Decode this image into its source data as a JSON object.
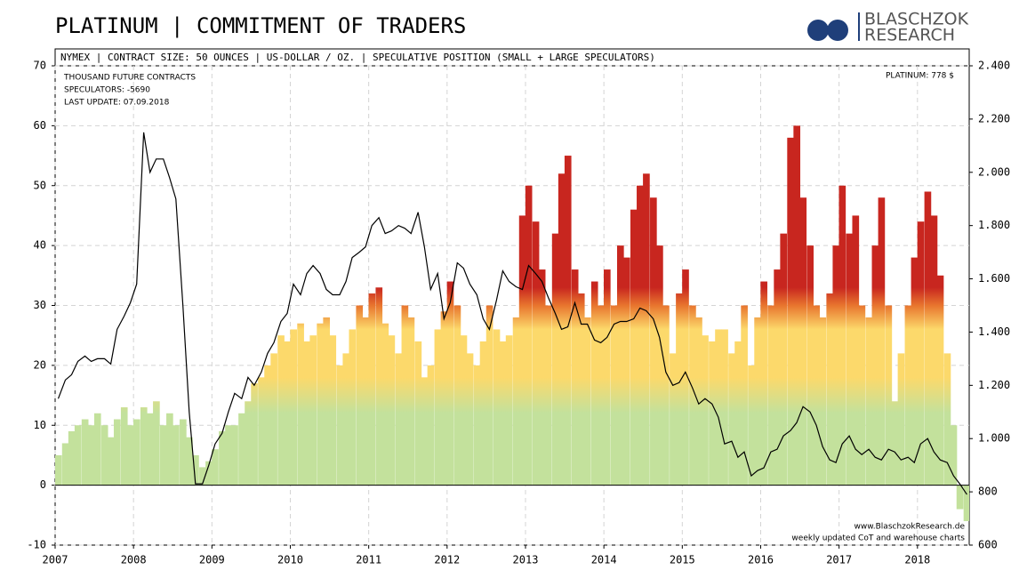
{
  "chart_data": {
    "type": "combo",
    "title": "PLATINUM | COMMITMENT OF TRADERS",
    "logo": [
      "BLASCHZOK",
      "RESEARCH"
    ],
    "subtitle": "NYMEX | CONTRACT SIZE: 50 OUNCES | US-DOLLAR / OZ. | SPECULATIVE POSITION (SMALL + LARGE SPECULATORS)",
    "annotations": [
      "THOUSAND FUTURE CONTRACTS",
      "SPECULATORS: -5690",
      "LAST UPDATE: 07.09.2018",
      "PLATINUM: 778 $",
      "www.BlaschzokResearch.de",
      "weekly updated CoT and warehouse charts"
    ],
    "xlim": [
      2007,
      2018.66
    ],
    "xticks": [
      2007,
      2008,
      2009,
      2010,
      2011,
      2012,
      2013,
      2014,
      2015,
      2016,
      2017,
      2018
    ],
    "ylim": [
      -10,
      70
    ],
    "yticks": [
      -10,
      0,
      10,
      20,
      30,
      40,
      50,
      60,
      70
    ],
    "y2lim": [
      600,
      2400
    ],
    "y2ticks": [
      600,
      800,
      {
        "value": 1000,
        "label": "1.000"
      },
      {
        "value": 1200,
        "label": "1.200"
      },
      {
        "value": 1400,
        "label": "1.400"
      },
      {
        "value": 1600,
        "label": "1.600"
      },
      {
        "value": 1800,
        "label": "1.800"
      },
      {
        "value": 2000,
        "label": "2.000"
      },
      {
        "value": 2200,
        "label": "2.200"
      },
      {
        "value": 2400,
        "label": "2.400"
      }
    ],
    "grid": true,
    "x": [
      2007.04,
      2007.13,
      2007.21,
      2007.29,
      2007.38,
      2007.46,
      2007.54,
      2007.63,
      2007.71,
      2007.79,
      2007.88,
      2007.96,
      2008.04,
      2008.13,
      2008.21,
      2008.29,
      2008.38,
      2008.46,
      2008.54,
      2008.63,
      2008.71,
      2008.79,
      2008.88,
      2008.96,
      2009.04,
      2009.13,
      2009.21,
      2009.29,
      2009.38,
      2009.46,
      2009.54,
      2009.63,
      2009.71,
      2009.79,
      2009.88,
      2009.96,
      2010.04,
      2010.13,
      2010.21,
      2010.29,
      2010.38,
      2010.46,
      2010.54,
      2010.63,
      2010.71,
      2010.79,
      2010.88,
      2010.96,
      2011.04,
      2011.13,
      2011.21,
      2011.29,
      2011.38,
      2011.46,
      2011.54,
      2011.63,
      2011.71,
      2011.79,
      2011.88,
      2011.96,
      2012.04,
      2012.13,
      2012.21,
      2012.29,
      2012.38,
      2012.46,
      2012.54,
      2012.63,
      2012.71,
      2012.79,
      2012.88,
      2012.96,
      2013.04,
      2013.13,
      2013.21,
      2013.29,
      2013.38,
      2013.46,
      2013.54,
      2013.63,
      2013.71,
      2013.79,
      2013.88,
      2013.96,
      2014.04,
      2014.13,
      2014.21,
      2014.29,
      2014.38,
      2014.46,
      2014.54,
      2014.63,
      2014.71,
      2014.79,
      2014.88,
      2014.96,
      2015.04,
      2015.13,
      2015.21,
      2015.29,
      2015.38,
      2015.46,
      2015.54,
      2015.63,
      2015.71,
      2015.79,
      2015.88,
      2015.96,
      2016.04,
      2016.13,
      2016.21,
      2016.29,
      2016.38,
      2016.46,
      2016.54,
      2016.63,
      2016.71,
      2016.79,
      2016.88,
      2016.96,
      2017.04,
      2017.13,
      2017.21,
      2017.29,
      2017.38,
      2017.46,
      2017.54,
      2017.63,
      2017.71,
      2017.79,
      2017.88,
      2017.96,
      2018.04,
      2018.13,
      2018.21,
      2018.29,
      2018.38,
      2018.46,
      2018.54,
      2018.63
    ],
    "series": [
      {
        "type": "bar",
        "color_scale": [
          {
            "value": 12,
            "color": "#c3e19c"
          },
          {
            "value": 18,
            "color": "#fcd96b"
          },
          {
            "value": 26,
            "color": "#fcd96b"
          },
          {
            "value": 30,
            "color": "#e8752e"
          },
          {
            "value": 33,
            "color": "#c8261f"
          }
        ],
        "values": [
          5,
          7,
          9,
          10,
          11,
          10,
          12,
          10,
          8,
          11,
          13,
          10,
          11,
          13,
          12,
          14,
          10,
          12,
          10,
          11,
          8,
          5,
          3,
          4,
          6,
          9,
          10,
          10,
          12,
          14,
          17,
          18,
          20,
          22,
          25,
          24,
          26,
          27,
          24,
          25,
          27,
          28,
          25,
          20,
          22,
          26,
          30,
          28,
          32,
          33,
          27,
          25,
          22,
          30,
          28,
          24,
          18,
          20,
          26,
          29,
          34,
          30,
          25,
          22,
          20,
          24,
          30,
          26,
          24,
          25,
          28,
          45,
          50,
          44,
          36,
          30,
          42,
          52,
          55,
          36,
          32,
          28,
          34,
          30,
          36,
          30,
          40,
          38,
          46,
          50,
          52,
          48,
          40,
          30,
          22,
          32,
          36,
          30,
          28,
          25,
          24,
          26,
          26,
          22,
          24,
          30,
          20,
          28,
          34,
          30,
          36,
          42,
          58,
          60,
          48,
          40,
          30,
          28,
          32,
          40,
          50,
          42,
          45,
          30,
          28,
          40,
          48,
          30,
          14,
          22,
          30,
          38,
          44,
          49,
          45,
          35,
          22,
          10,
          -4,
          -6
        ]
      },
      {
        "type": "line",
        "axis": "y2",
        "color": "#000000",
        "values": [
          1150,
          1220,
          1240,
          1290,
          1310,
          1290,
          1300,
          1300,
          1280,
          1410,
          1460,
          1510,
          1580,
          2150,
          2000,
          2050,
          2050,
          1980,
          1900,
          1500,
          1100,
          830,
          830,
          900,
          980,
          1020,
          1100,
          1170,
          1150,
          1230,
          1200,
          1250,
          1320,
          1360,
          1440,
          1470,
          1580,
          1540,
          1620,
          1650,
          1620,
          1560,
          1540,
          1540,
          1590,
          1680,
          1700,
          1720,
          1800,
          1830,
          1770,
          1780,
          1800,
          1790,
          1770,
          1850,
          1720,
          1560,
          1620,
          1450,
          1510,
          1660,
          1640,
          1580,
          1540,
          1450,
          1410,
          1520,
          1630,
          1590,
          1570,
          1560,
          1650,
          1620,
          1590,
          1530,
          1470,
          1410,
          1420,
          1510,
          1430,
          1430,
          1370,
          1360,
          1380,
          1430,
          1440,
          1440,
          1450,
          1490,
          1480,
          1450,
          1380,
          1250,
          1200,
          1210,
          1250,
          1190,
          1130,
          1150,
          1130,
          1080,
          980,
          990,
          930,
          950,
          860,
          880,
          890,
          950,
          960,
          1010,
          1030,
          1060,
          1120,
          1100,
          1050,
          970,
          920,
          910,
          980,
          1010,
          960,
          940,
          960,
          930,
          920,
          960,
          950,
          920,
          930,
          910,
          980,
          1000,
          950,
          920,
          910,
          860,
          830,
          790
        ]
      }
    ]
  }
}
